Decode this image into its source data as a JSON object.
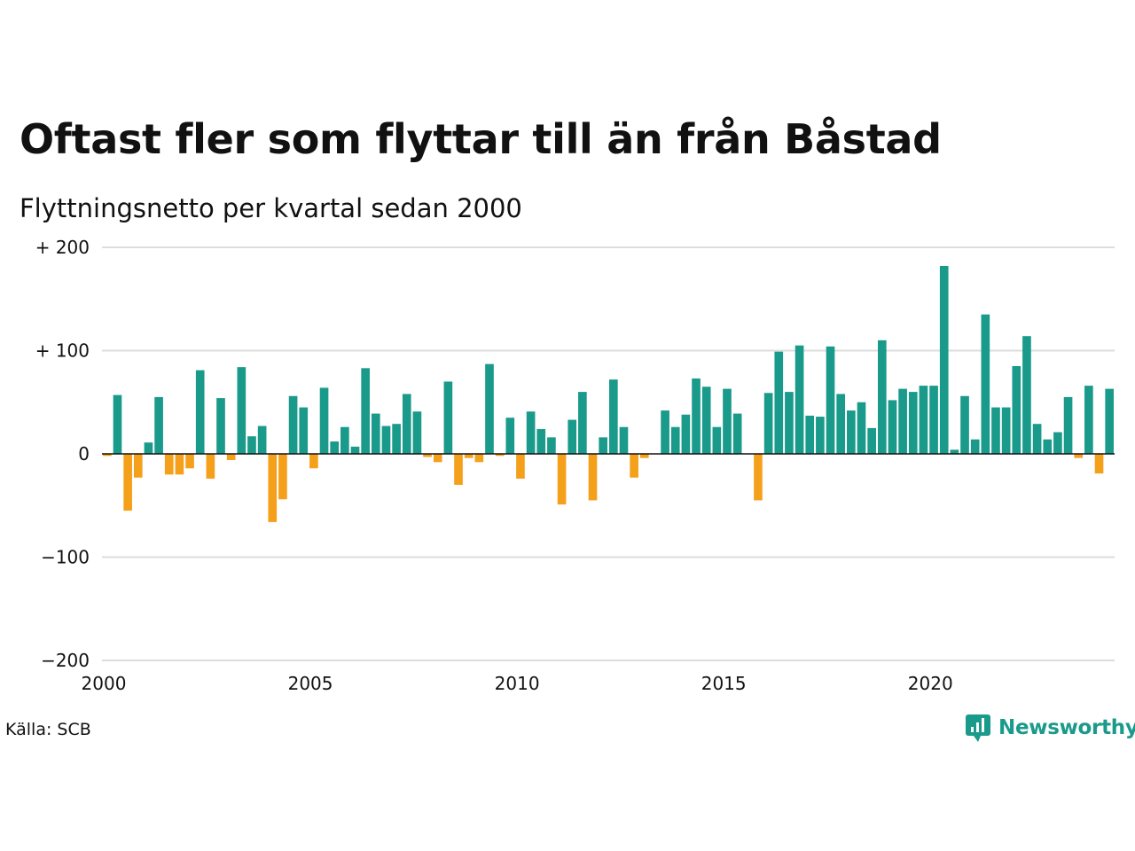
{
  "chart_data": {
    "type": "bar",
    "title": "Oftast fler som flyttar till än från Båstad",
    "subtitle": "Flyttningsnetto per kvartal sedan 2000",
    "source": "Källa: SCB",
    "brand": "Newsworthy",
    "colors": {
      "positive": "#1a9a8a",
      "negative": "#f5a01a",
      "grid": "#dddddd",
      "zero": "#111111"
    },
    "ylim": [
      -200,
      200
    ],
    "yticks": [
      {
        "value": 200,
        "label": "+ 200"
      },
      {
        "value": 100,
        "label": "+ 100"
      },
      {
        "value": 0,
        "label": "0"
      },
      {
        "value": -100,
        "label": "−100"
      },
      {
        "value": -200,
        "label": "−200"
      }
    ],
    "xticks": [
      {
        "value": 2000,
        "label": "2000"
      },
      {
        "value": 2005,
        "label": "2005"
      },
      {
        "value": 2010,
        "label": "2010"
      },
      {
        "value": 2015,
        "label": "2015"
      },
      {
        "value": 2020,
        "label": "2020"
      }
    ],
    "grid": true,
    "start_year": 2000,
    "values": [
      -2,
      57,
      -55,
      -23,
      11,
      55,
      -20,
      -20,
      -14,
      81,
      -24,
      54,
      -6,
      84,
      17,
      27,
      -66,
      -44,
      56,
      45,
      -14,
      64,
      12,
      26,
      7,
      83,
      39,
      27,
      29,
      58,
      41,
      -3,
      -8,
      70,
      -30,
      -4,
      -8,
      87,
      -2,
      35,
      -24,
      41,
      24,
      16,
      -49,
      33,
      60,
      -45,
      16,
      72,
      26,
      -23,
      -4,
      0,
      42,
      26,
      38,
      73,
      65,
      26,
      63,
      39,
      0,
      -45,
      59,
      99,
      60,
      105,
      37,
      36,
      104,
      58,
      42,
      50,
      25,
      110,
      52,
      63,
      60,
      66,
      66,
      182,
      4,
      56,
      14,
      135,
      45,
      45,
      85,
      114,
      29,
      14,
      21,
      55,
      -4,
      66,
      -19,
      63
    ]
  }
}
